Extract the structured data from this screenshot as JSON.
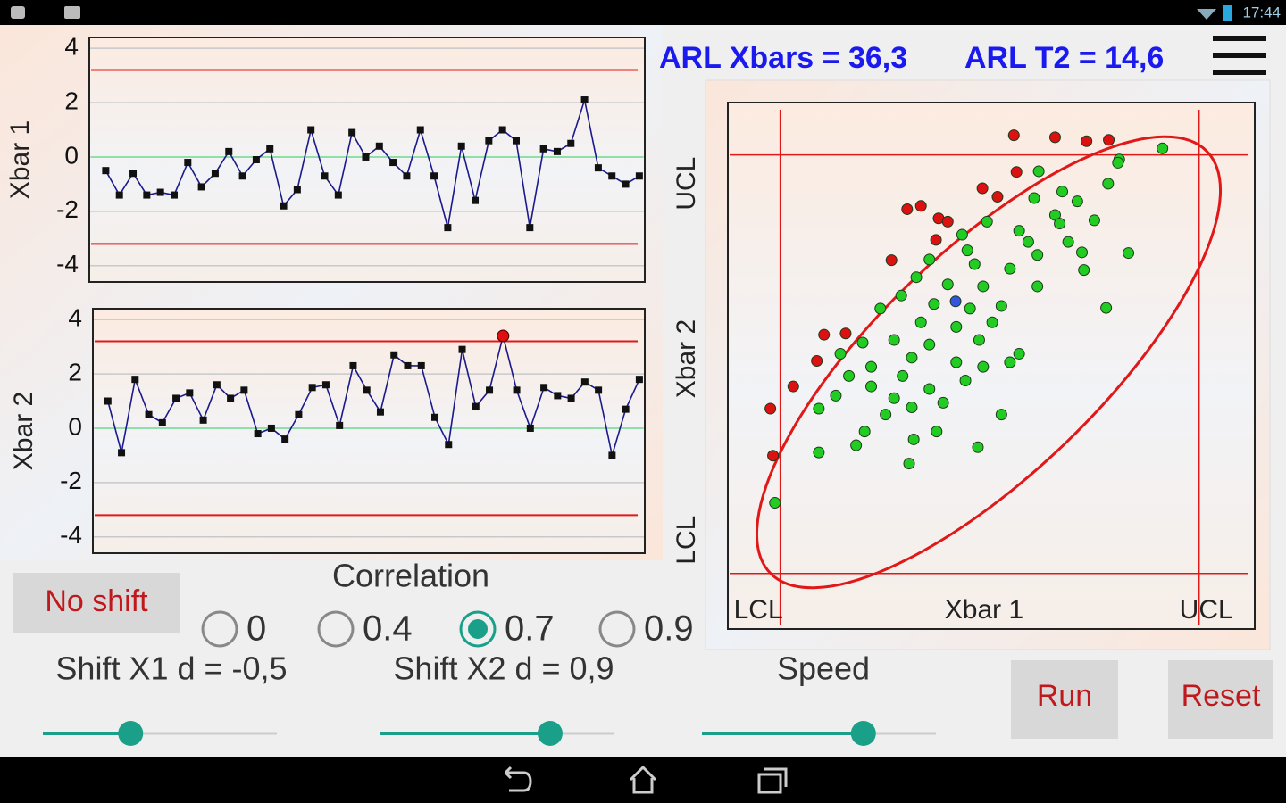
{
  "status_bar": {
    "time": "17:44"
  },
  "arl": {
    "xbars": "ARL Xbars = 36,3",
    "t2": "ARL T2 = 14,6"
  },
  "controls": {
    "no_shift": "No shift",
    "correlation": {
      "title": "Correlation",
      "options": [
        "0",
        "0.4",
        "0.7",
        "0.9"
      ],
      "selected": 2
    },
    "shift_x1": {
      "label": "Shift X1 d = -0,5",
      "value": -0.5,
      "range": [
        -2,
        2
      ]
    },
    "shift_x2": {
      "label": "Shift X2 d = 0,9",
      "value": 0.9,
      "range": [
        -2,
        2
      ]
    },
    "speed": {
      "label": "Speed",
      "value": 0.69,
      "range": [
        0,
        1
      ]
    },
    "run": "Run",
    "reset": "Reset"
  },
  "chart_data": [
    {
      "type": "line",
      "y_label": "Xbar 1",
      "x": [
        1,
        2,
        3,
        4,
        5,
        6,
        7,
        8,
        9,
        10,
        11,
        12,
        13,
        14,
        15,
        16,
        17,
        18,
        19,
        20,
        21,
        22,
        23,
        24,
        25,
        26,
        27,
        28,
        29,
        30,
        31,
        32,
        33,
        34,
        35,
        36,
        37,
        38,
        39,
        40
      ],
      "series": [
        {
          "color": "#1a1a8c",
          "marker_color": "#111111",
          "alarm_color": "#e01010",
          "values": [
            -0.5,
            -1.4,
            -0.6,
            -1.4,
            -1.3,
            -1.4,
            -0.2,
            -1.1,
            -0.6,
            0.2,
            -0.7,
            -0.1,
            0.3,
            -1.8,
            -1.2,
            1.0,
            -0.7,
            -1.4,
            0.9,
            0.0,
            0.4,
            -0.2,
            -0.7,
            1.0,
            -0.7,
            -2.6,
            0.4,
            -1.6,
            0.6,
            1.0,
            0.6,
            -2.6,
            0.3,
            0.2,
            0.5,
            2.1,
            -0.4,
            -0.7,
            -1.0,
            -0.7
          ]
        }
      ],
      "control_limits": {
        "ucl": 3.2,
        "lcl": -3.2,
        "center": 0
      },
      "xlim": [
        -0.2,
        40.4
      ],
      "ylim": [
        -4.6,
        4.4
      ],
      "yticks": [
        -4,
        -2,
        0,
        2,
        4
      ],
      "grid": true
    },
    {
      "type": "line",
      "y_label": "Xbar 2",
      "x": [
        1,
        2,
        3,
        4,
        5,
        6,
        7,
        8,
        9,
        10,
        11,
        12,
        13,
        14,
        15,
        16,
        17,
        18,
        19,
        20,
        21,
        22,
        23,
        24,
        25,
        26,
        27,
        28,
        29,
        30,
        31,
        32,
        33,
        34,
        35,
        36,
        37,
        38,
        39,
        40
      ],
      "series": [
        {
          "color": "#1a1a8c",
          "marker_color": "#111111",
          "alarm_color": "#e01010",
          "values": [
            1.0,
            -0.9,
            1.8,
            0.5,
            0.2,
            1.1,
            1.3,
            0.3,
            1.6,
            1.1,
            1.4,
            -0.2,
            0.0,
            -0.4,
            0.5,
            1.5,
            1.6,
            0.1,
            2.3,
            1.4,
            0.6,
            2.7,
            2.3,
            2.3,
            0.4,
            -0.6,
            2.9,
            0.8,
            1.4,
            3.4,
            1.4,
            0.0,
            1.5,
            1.2,
            1.1,
            1.7,
            1.4,
            -1.0,
            0.7,
            1.8
          ]
        }
      ],
      "control_limits": {
        "ucl": 3.2,
        "lcl": -3.2,
        "center": 0
      },
      "xlim": [
        -0.1,
        40.4
      ],
      "ylim": [
        -4.6,
        4.4
      ],
      "yticks": [
        -4,
        -2,
        0,
        2,
        4
      ],
      "grid": true
    },
    {
      "type": "scatter",
      "x_label": "Xbar 1",
      "y_label": "Xbar 2",
      "xlim": [
        -4,
        4.05
      ],
      "ylim": [
        -4.05,
        4
      ],
      "xticks": [
        {
          "value": -3.2,
          "label": "LCL"
        },
        {
          "value": 3.2,
          "label": "UCL"
        }
      ],
      "yticks": [
        {
          "value": -3.2,
          "label": "LCL"
        },
        {
          "value": 3.2,
          "label": "UCL"
        }
      ],
      "series": [
        {
          "color": "#22cc22",
          "x": [
            2.64,
            1.98,
            0.75,
            1.81,
            1.11,
            0.68,
            1.34,
            1.0,
            -0.04,
            1.6,
            0.45,
            -0.42,
            1.2,
            2.12,
            0.73,
            1.44,
            -0.92,
            -0.23,
            0.31,
            -1.12,
            -0.64,
            -0.1,
            0.73,
            -1.35,
            -0.85,
            -0.3,
            0.18,
            1.78,
            -1.67,
            -1.05,
            -0.51,
            0.04,
            -1.46,
            -0.92,
            -0.16,
            0.45,
            -1.94,
            -2.28,
            -1.19,
            -0.51,
            -1.81,
            -0.1,
            0.31,
            -2.15,
            -1.33,
            -0.37,
            -1.81,
            -0.92,
            -1.46,
            -2.35,
            -1.19,
            -0.71,
            -1.59,
            0.18,
            -2.61,
            -0.81,
            -1.91,
            -1.16,
            -0.18,
            -2.04,
            -2.61,
            -1.23,
            -3.28,
            1.96,
            1.07,
            0.59,
            1.41,
            -0.34
          ],
          "y": [
            3.3,
            3.13,
            2.95,
            2.76,
            2.64,
            2.54,
            2.49,
            2.28,
            2.18,
            2.2,
            2.04,
            1.98,
            1.87,
            1.7,
            1.67,
            1.44,
            1.6,
            1.53,
            1.46,
            1.33,
            1.22,
            1.19,
            1.19,
            1.05,
            0.92,
            0.85,
            0.89,
            0.86,
            0.85,
            0.64,
            0.57,
            0.64,
            0.37,
            0.3,
            0.37,
            0.16,
            0.33,
            0.16,
            0.1,
            0.03,
            -0.04,
            -0.04,
            0.03,
            -0.18,
            -0.18,
            -0.25,
            -0.34,
            -0.38,
            -0.52,
            -0.48,
            -0.66,
            -0.59,
            -0.77,
            -0.77,
            -0.68,
            -1.03,
            -1.03,
            -1.15,
            -1.27,
            -1.24,
            -1.35,
            -1.52,
            -2.12,
            3.08,
            2.15,
            1.87,
            1.71,
            1.74
          ]
        },
        {
          "color": "#dd1111",
          "x": [
            0.37,
            1.0,
            1.48,
            1.82,
            0.41,
            -0.11,
            0.12,
            -1.26,
            -1.05,
            -0.78,
            -0.64,
            -0.82,
            -1.5,
            -2.53,
            -2.2,
            -2.64,
            -3.0,
            -3.35,
            -3.31
          ],
          "y": [
            3.5,
            3.47,
            3.41,
            3.43,
            2.94,
            2.69,
            2.56,
            2.37,
            2.42,
            2.23,
            2.18,
            1.9,
            1.59,
            0.45,
            0.47,
            0.05,
            -0.34,
            -0.68,
            -1.4
          ]
        },
        {
          "color": "#3355dd",
          "x": [
            -0.52
          ],
          "y": [
            0.96
          ]
        }
      ]
    }
  ]
}
